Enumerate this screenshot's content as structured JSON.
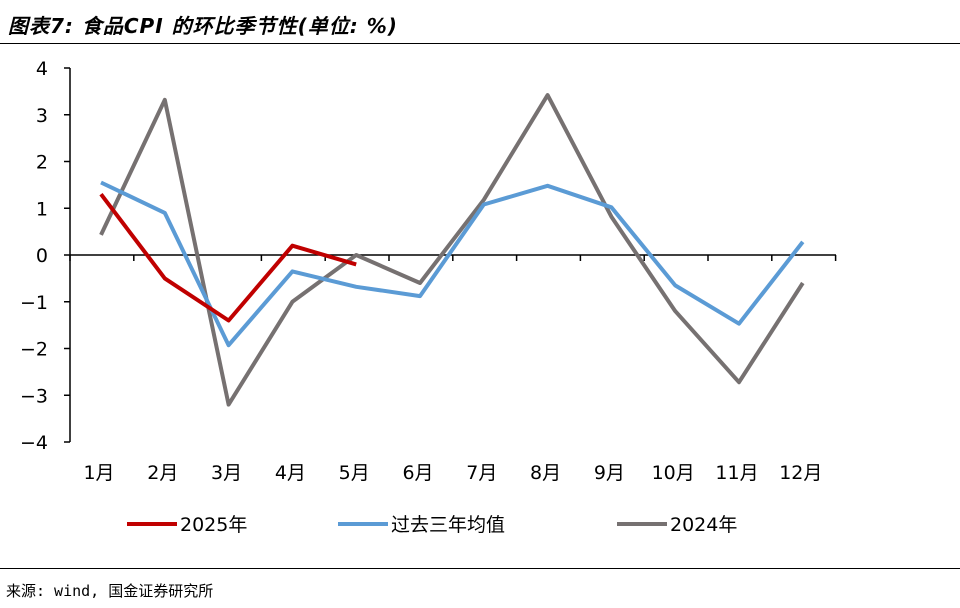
{
  "header": {
    "title": "图表7: 食品CPI 的环比季节性(单位: %)"
  },
  "footer": {
    "source": "来源: wind, 国金证券研究所"
  },
  "chart_data": {
    "type": "line",
    "title": "图表7: 食品CPI 的环比季节性(单位: %)",
    "xlabel": "",
    "ylabel": "",
    "categories": [
      "1月",
      "2月",
      "3月",
      "4月",
      "5月",
      "6月",
      "7月",
      "8月",
      "9月",
      "10月",
      "11月",
      "12月"
    ],
    "ylim": [
      -4,
      4
    ],
    "yticks": [
      4,
      3,
      2,
      1,
      0,
      -1,
      -2,
      -3,
      -4
    ],
    "ytick_labels": [
      "4",
      "3",
      "2",
      "1",
      "0",
      "−1",
      "−2",
      "−3",
      "−4"
    ],
    "grid": false,
    "legend_position": "bottom",
    "series": [
      {
        "name": "2025年",
        "color": "#c00000",
        "values": [
          1.3,
          -0.5,
          -1.4,
          0.2,
          -0.2,
          null,
          null,
          null,
          null,
          null,
          null,
          null
        ]
      },
      {
        "name": "过去三年均值",
        "color": "#5b9bd5",
        "values": [
          1.55,
          0.9,
          -1.93,
          -0.35,
          -0.68,
          -0.88,
          1.08,
          1.48,
          1.02,
          -0.65,
          -1.47,
          0.28
        ]
      },
      {
        "name": "2024年",
        "color": "#767171",
        "values": [
          0.43,
          3.32,
          -3.2,
          -1.0,
          0.0,
          -0.6,
          1.18,
          3.42,
          0.82,
          -1.2,
          -2.72,
          -0.6
        ]
      }
    ]
  }
}
